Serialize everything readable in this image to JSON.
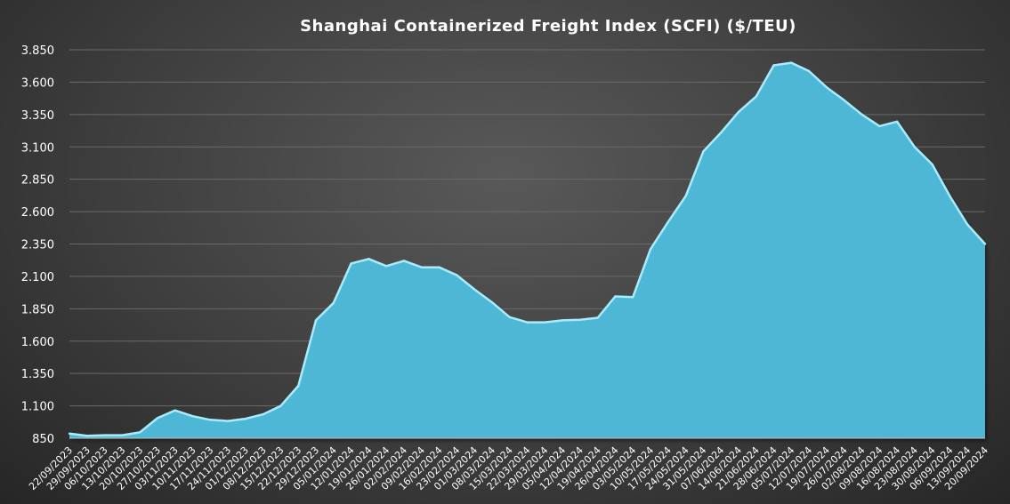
{
  "chart_data": {
    "type": "area",
    "title": "Shanghai  Containerized  Freight  Index  (SCFI) ($/TEU)",
    "xlabel": "",
    "ylabel": "",
    "ylim": [
      850,
      3850
    ],
    "yticks": [
      "850",
      "1.100",
      "1.350",
      "1.600",
      "1.850",
      "2.100",
      "2.350",
      "2.600",
      "2.850",
      "3.100",
      "3.350",
      "3.600",
      "3.850"
    ],
    "ytick_values": [
      850,
      1100,
      1350,
      1600,
      1850,
      2100,
      2350,
      2600,
      2850,
      3100,
      3350,
      3600,
      3850
    ],
    "grid": true,
    "legend": "none",
    "fill_color": "#4fb7d6",
    "edge_color": "#a8ecfb",
    "categories": [
      "22/09/2023",
      "29/09/2023",
      "06/10/2023",
      "13/10/2023",
      "20/10/2023",
      "27/10/2023",
      "03/11/2023",
      "10/11/2023",
      "17/11/2023",
      "24/11/2023",
      "01/12/2023",
      "08/12/2023",
      "15/12/2023",
      "22/12/2023",
      "29/12/2023",
      "05/01/2024",
      "12/01/2024",
      "19/01/2024",
      "26/01/2024",
      "02/02/2024",
      "09/02/2024",
      "16/02/2024",
      "23/02/2024",
      "01/03/2024",
      "08/03/2024",
      "15/03/2024",
      "22/03/2024",
      "29/03/2024",
      "05/04/2024",
      "12/04/2024",
      "19/04/2024",
      "26/04/2024",
      "03/05/2024",
      "10/05/2024",
      "17/05/2024",
      "24/05/2024",
      "31/05/2024",
      "07/06/2024",
      "14/06/2024",
      "21/06/2024",
      "28/06/2024",
      "05/07/2024",
      "12/07/2024",
      "19/07/2024",
      "26/07/2024",
      "02/08/2024",
      "09/08/2024",
      "16/08/2024",
      "23/08/2024",
      "30/08/2024",
      "06/09/2024",
      "13/09/2024",
      "20/09/2024"
    ],
    "values": [
      886,
      869,
      873,
      873,
      895,
      1005,
      1065,
      1020,
      992,
      983,
      1000,
      1035,
      1100,
      1255,
      1760,
      1895,
      2200,
      2235,
      2180,
      2220,
      2170,
      2170,
      2110,
      2000,
      1900,
      1785,
      1745,
      1745,
      1760,
      1765,
      1780,
      1945,
      1940,
      2310,
      2520,
      2720,
      3065,
      3210,
      3370,
      3490,
      3730,
      3750,
      3685,
      3560,
      3460,
      3350,
      3260,
      3295,
      3100,
      2965,
      2720,
      2500,
      2350
    ]
  }
}
